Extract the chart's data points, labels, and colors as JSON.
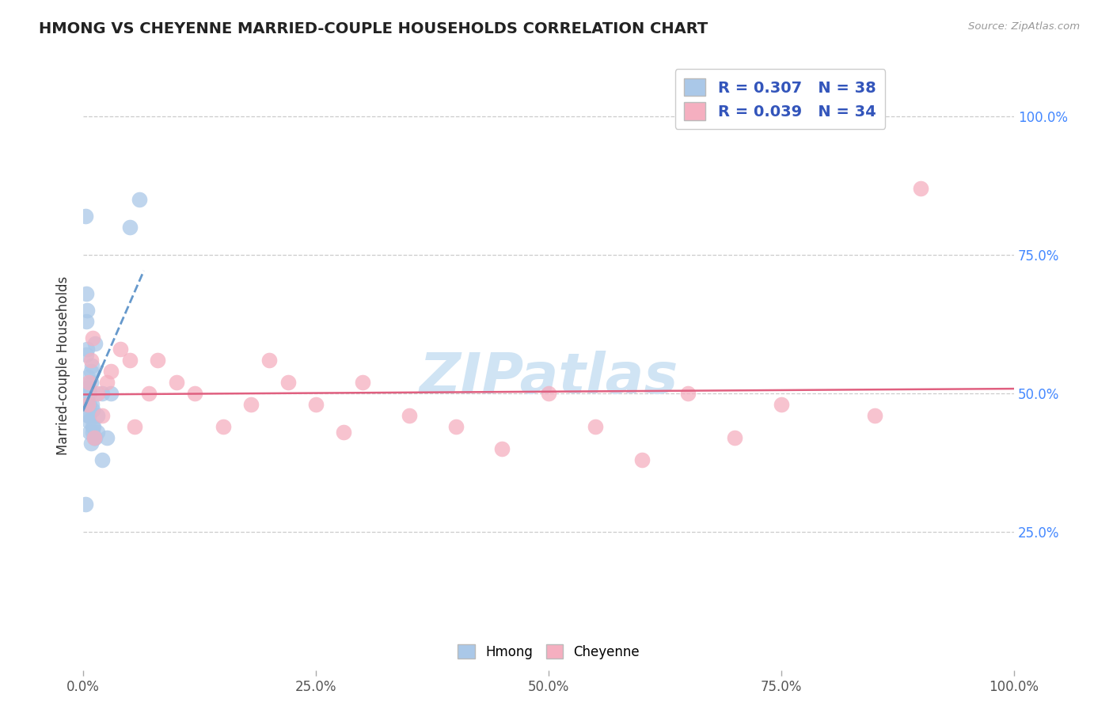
{
  "title": "HMONG VS CHEYENNE MARRIED-COUPLE HOUSEHOLDS CORRELATION CHART",
  "source": "Source: ZipAtlas.com",
  "ylabel": "Married-couple Households",
  "xlim": [
    0,
    1.0
  ],
  "ylim": [
    0,
    1.1
  ],
  "xtick_vals": [
    0.0,
    0.25,
    0.5,
    0.75,
    1.0
  ],
  "ytick_vals": [
    0.25,
    0.5,
    0.75,
    1.0
  ],
  "xtick_labels": [
    "0.0%",
    "25.0%",
    "50.0%",
    "75.0%",
    "100.0%"
  ],
  "ytick_labels_right": [
    "25.0%",
    "50.0%",
    "75.0%",
    "100.0%"
  ],
  "hmong_R": 0.307,
  "hmong_N": 38,
  "cheyenne_R": 0.039,
  "cheyenne_N": 34,
  "hmong_color": "#aac8e8",
  "cheyenne_color": "#f5afc0",
  "hmong_line_color": "#6699cc",
  "cheyenne_line_color": "#e06080",
  "background_color": "#ffffff",
  "grid_color": "#cccccc",
  "watermark_color": "#d0e4f4",
  "legend_text_color": "#3355bb",
  "right_axis_color": "#4488ff",
  "hmong_x": [
    0.002,
    0.002,
    0.003,
    0.003,
    0.003,
    0.004,
    0.004,
    0.004,
    0.005,
    0.005,
    0.005,
    0.005,
    0.006,
    0.006,
    0.006,
    0.007,
    0.007,
    0.007,
    0.008,
    0.008,
    0.008,
    0.009,
    0.009,
    0.01,
    0.01,
    0.01,
    0.011,
    0.012,
    0.013,
    0.013,
    0.015,
    0.015,
    0.02,
    0.02,
    0.025,
    0.03,
    0.05,
    0.06
  ],
  "hmong_y": [
    0.3,
    0.82,
    0.63,
    0.68,
    0.57,
    0.58,
    0.65,
    0.51,
    0.5,
    0.48,
    0.46,
    0.53,
    0.46,
    0.51,
    0.45,
    0.48,
    0.5,
    0.43,
    0.52,
    0.54,
    0.41,
    0.55,
    0.48,
    0.44,
    0.47,
    0.43,
    0.44,
    0.42,
    0.59,
    0.42,
    0.43,
    0.46,
    0.5,
    0.38,
    0.42,
    0.5,
    0.8,
    0.85
  ],
  "cheyenne_x": [
    0.005,
    0.006,
    0.008,
    0.01,
    0.012,
    0.015,
    0.02,
    0.025,
    0.03,
    0.04,
    0.05,
    0.055,
    0.07,
    0.08,
    0.1,
    0.12,
    0.15,
    0.18,
    0.2,
    0.22,
    0.25,
    0.28,
    0.3,
    0.35,
    0.4,
    0.45,
    0.5,
    0.55,
    0.6,
    0.65,
    0.7,
    0.75,
    0.85,
    0.9
  ],
  "cheyenne_y": [
    0.48,
    0.52,
    0.56,
    0.6,
    0.42,
    0.5,
    0.46,
    0.52,
    0.54,
    0.58,
    0.56,
    0.44,
    0.5,
    0.56,
    0.52,
    0.5,
    0.44,
    0.48,
    0.56,
    0.52,
    0.48,
    0.43,
    0.52,
    0.46,
    0.44,
    0.4,
    0.5,
    0.44,
    0.38,
    0.5,
    0.42,
    0.48,
    0.46,
    0.87
  ],
  "hmong_trend_x0": -0.015,
  "hmong_trend_x1": 0.065,
  "cheyenne_trend_x0": 0.0,
  "cheyenne_trend_x1": 1.0
}
